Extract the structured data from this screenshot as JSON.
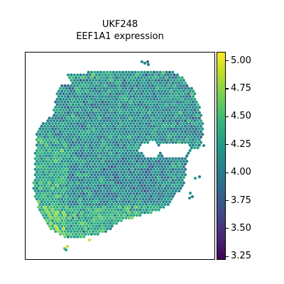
{
  "chart_data": {
    "type": "scatter",
    "title": "UKF248",
    "subtitle": "EEF1A1 expression",
    "colorbar": {
      "colormap": "viridis",
      "range": [
        3.22,
        5.08
      ],
      "ticks": [
        5.0,
        4.75,
        4.5,
        4.25,
        4.0,
        3.75,
        3.5,
        3.25
      ],
      "tick_labels": [
        "5.00",
        "4.75",
        "4.50",
        "4.25",
        "4.00",
        "3.75",
        "3.50",
        "3.25"
      ]
    },
    "axes_visible": false,
    "grid": false
  }
}
